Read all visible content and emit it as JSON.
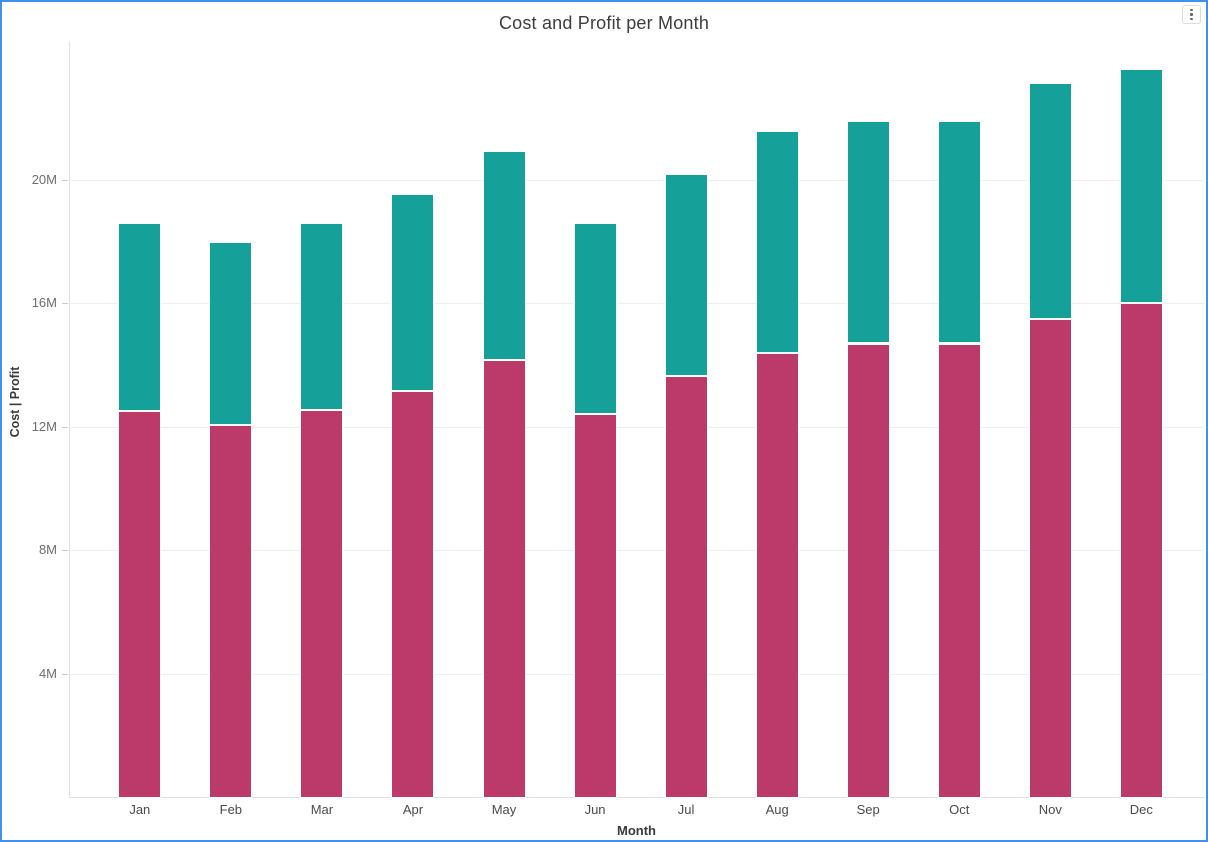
{
  "widget": {
    "border_color": "#4190f0",
    "menu_icon": "kebab-menu-icon"
  },
  "chart_data": {
    "type": "bar",
    "stacked": true,
    "title": "Cost and Profit per Month",
    "xlabel": "Month",
    "ylabel": "Cost | Profit",
    "categories": [
      "Jan",
      "Feb",
      "Mar",
      "Apr",
      "May",
      "Jun",
      "Jul",
      "Aug",
      "Sep",
      "Oct",
      "Nov",
      "Dec"
    ],
    "series": [
      {
        "name": "Cost",
        "color": "#bc3a6a",
        "values_millions": [
          12.5,
          12.05,
          12.55,
          13.15,
          14.15,
          12.4,
          13.65,
          14.4,
          14.7,
          14.7,
          15.5,
          16.0
        ]
      },
      {
        "name": "Profit",
        "color": "#16a09a",
        "values_millions": [
          6.1,
          5.95,
          6.05,
          6.4,
          6.8,
          6.2,
          6.55,
          7.2,
          7.2,
          7.2,
          7.65,
          7.6
        ]
      }
    ],
    "y_ticks": [
      "4M",
      "8M",
      "12M",
      "16M",
      "20M"
    ],
    "y_tick_values_millions": [
      4,
      8,
      12,
      16,
      20
    ],
    "ylim_millions": [
      0,
      24.5
    ],
    "grid": true,
    "legend": "none"
  }
}
